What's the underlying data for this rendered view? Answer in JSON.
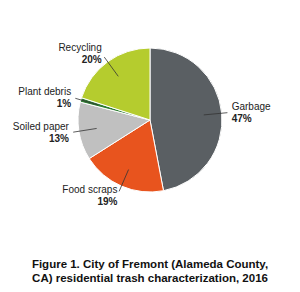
{
  "chart_data": {
    "type": "pie",
    "title": "Figure 1. City of Fremont (Alameda County,\nCA) residential trash characterization, 2016",
    "categories": [
      "Garbage",
      "Food scraps",
      "Soiled paper",
      "Plant debris",
      "Recycling"
    ],
    "values": [
      47,
      19,
      13,
      1,
      20
    ],
    "value_labels": [
      "47%",
      "19%",
      "13%",
      "1%",
      "20%"
    ],
    "colors": [
      "#5a5f63",
      "#e8541e",
      "#c0c0c0",
      "#2e7d32",
      "#b5cc2e"
    ],
    "data_labels": true
  }
}
